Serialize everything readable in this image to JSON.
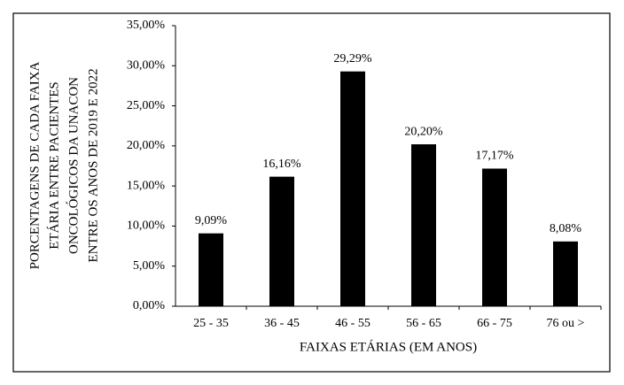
{
  "chart_data": {
    "type": "bar",
    "ylabel": [
      "PORCENTAGENS DE CADA FAIXA",
      "ETÁRIA ENTRE PACIENTES",
      "ONCOLÓGICOS DA UNACON",
      "ENTRE OS ANOS DE 2019 E 2022"
    ],
    "xlabel": "FAIXAS  ETÁRIAS  (EM ANOS)",
    "categories": [
      "25 - 35",
      "36 - 45",
      "46 - 55",
      "56 - 65",
      "66 - 75",
      "76 ou >"
    ],
    "values": [
      9.09,
      16.16,
      29.29,
      20.2,
      17.17,
      8.08
    ],
    "value_labels": [
      "9,09%",
      "16,16%",
      "29,29%",
      "20,20%",
      "17,17%",
      "8,08%"
    ],
    "color": "#000000",
    "ylim": [
      0,
      35
    ],
    "yticks": [
      {
        "value": 0,
        "label": "0,00%"
      },
      {
        "value": 5,
        "label": "5,00%"
      },
      {
        "value": 10,
        "label": "10,00%"
      },
      {
        "value": 15,
        "label": "15,00%"
      },
      {
        "value": 20,
        "label": "20,00%"
      },
      {
        "value": 25,
        "label": "25,00%"
      },
      {
        "value": 30,
        "label": "30,00%"
      },
      {
        "value": 35,
        "label": "35,00%"
      }
    ],
    "grid": false
  }
}
